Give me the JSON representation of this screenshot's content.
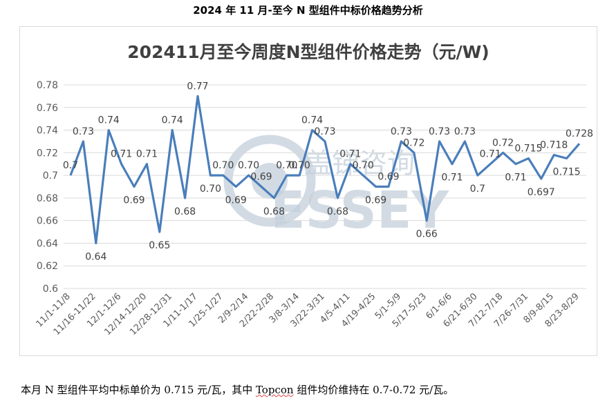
{
  "doc_title": "2024 年 11 月-至今 N 型组件中标价格趋势分析",
  "caption": {
    "prefix": "本月 N 型组件平均中标单价为 0.715 元/瓦，其中 ",
    "highlight": "Topcon",
    "suffix": " 组件均价维持在 0.7-0.72 元/瓦。"
  },
  "watermark": {
    "cn": "盖锑咨询",
    "en": "ESSEY",
    "color": "#c3cfdb"
  },
  "colors": {
    "line": "#4a7ebb",
    "grid": "#d9d9d9",
    "axis_text": "#595959"
  },
  "chart_data": {
    "type": "line",
    "title": "202411月至今周度N型组件价格走势（元/W)",
    "xlabel": "",
    "ylabel": "",
    "ylim": [
      0.6,
      0.78
    ],
    "yticks": [
      "0.6",
      "0.62",
      "0.64",
      "0.66",
      "0.68",
      "0.7",
      "0.72",
      "0.74",
      "0.76",
      "0.78"
    ],
    "grid": true,
    "legend": "none",
    "x_tick_labels": [
      "11/1-11/8",
      "11/16-11/22",
      "12/1-12/6",
      "12/14-12/20",
      "12/28-12/31",
      "1/11-1/17",
      "1/25-1/27",
      "2/9-2/14",
      "2/22-2/28",
      "3/8-3/14",
      "3/22-3/31",
      "4/5-4/11",
      "4/19-4/25",
      "5/1-5/9",
      "5/17-5/23",
      "6/1-6/6",
      "6/21-6/30",
      "7/12-7/18",
      "7/26-7/31",
      "8/9-8/15",
      "8/23-8/29"
    ],
    "values": [
      0.7,
      0.73,
      0.64,
      0.74,
      0.71,
      0.69,
      0.71,
      0.65,
      0.74,
      0.68,
      0.77,
      0.7,
      0.7,
      0.69,
      0.7,
      0.69,
      0.68,
      0.7,
      0.7,
      0.74,
      0.73,
      0.68,
      0.71,
      0.7,
      0.69,
      0.69,
      0.73,
      0.72,
      0.66,
      0.73,
      0.71,
      0.73,
      0.7,
      0.71,
      0.72,
      0.71,
      0.715,
      0.697,
      0.718,
      0.715,
      0.728
    ],
    "data_labels": [
      "0.7",
      "0.73",
      "0.64",
      "0.74",
      "0.71",
      "0.69",
      "0.71",
      "0.65",
      "0.74",
      "0.68",
      "0.77",
      "0.70",
      "0.70",
      "0.69",
      "0.70",
      "0.69",
      "0.68",
      "0.70",
      "0.70",
      "0.74",
      "0.73",
      "0.68",
      "0.71",
      "0.70",
      "0.69",
      "0.69",
      "0.73",
      "0.72",
      "0.66",
      "0.73",
      "0.71",
      "0.73",
      "0.7",
      "0.71",
      "0.72",
      "0.71",
      "0.715",
      "0.697",
      "0.718",
      "0.715",
      "0.728"
    ]
  }
}
